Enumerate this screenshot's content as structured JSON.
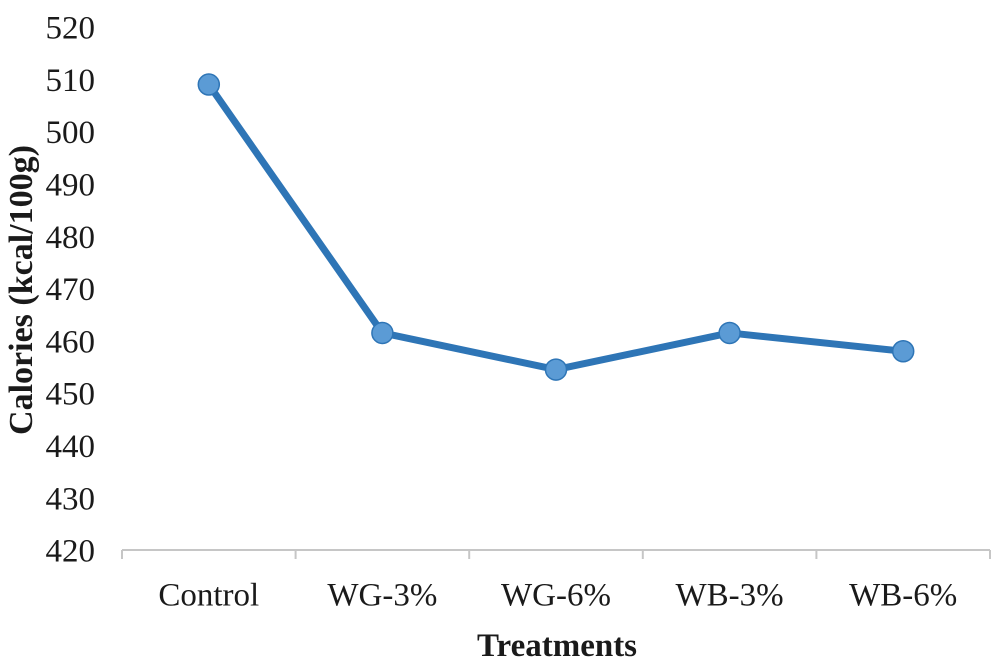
{
  "chart": {
    "y_axis_title": "Calories (kcal/100g)",
    "x_axis_title": "Treatments"
  },
  "chart_data": {
    "type": "line",
    "categories": [
      "Control",
      "WG-3%",
      "WG-6%",
      "WB-3%",
      "WB-6%"
    ],
    "values": [
      509,
      461.5,
      454.5,
      461.5,
      458
    ],
    "title": "",
    "xlabel": "Treatments",
    "ylabel": "Calories (kcal/100g)",
    "ylim": [
      420,
      520
    ],
    "yticks": [
      420,
      430,
      440,
      450,
      460,
      470,
      480,
      490,
      500,
      510,
      520
    ],
    "grid": false,
    "legend_position": "none",
    "colors": {
      "line": "#2E75B6",
      "marker_fill": "#5B9BD5",
      "marker_stroke": "#2E75B6",
      "axis": "#C6C6C6",
      "text": "#1a1a1a"
    }
  }
}
